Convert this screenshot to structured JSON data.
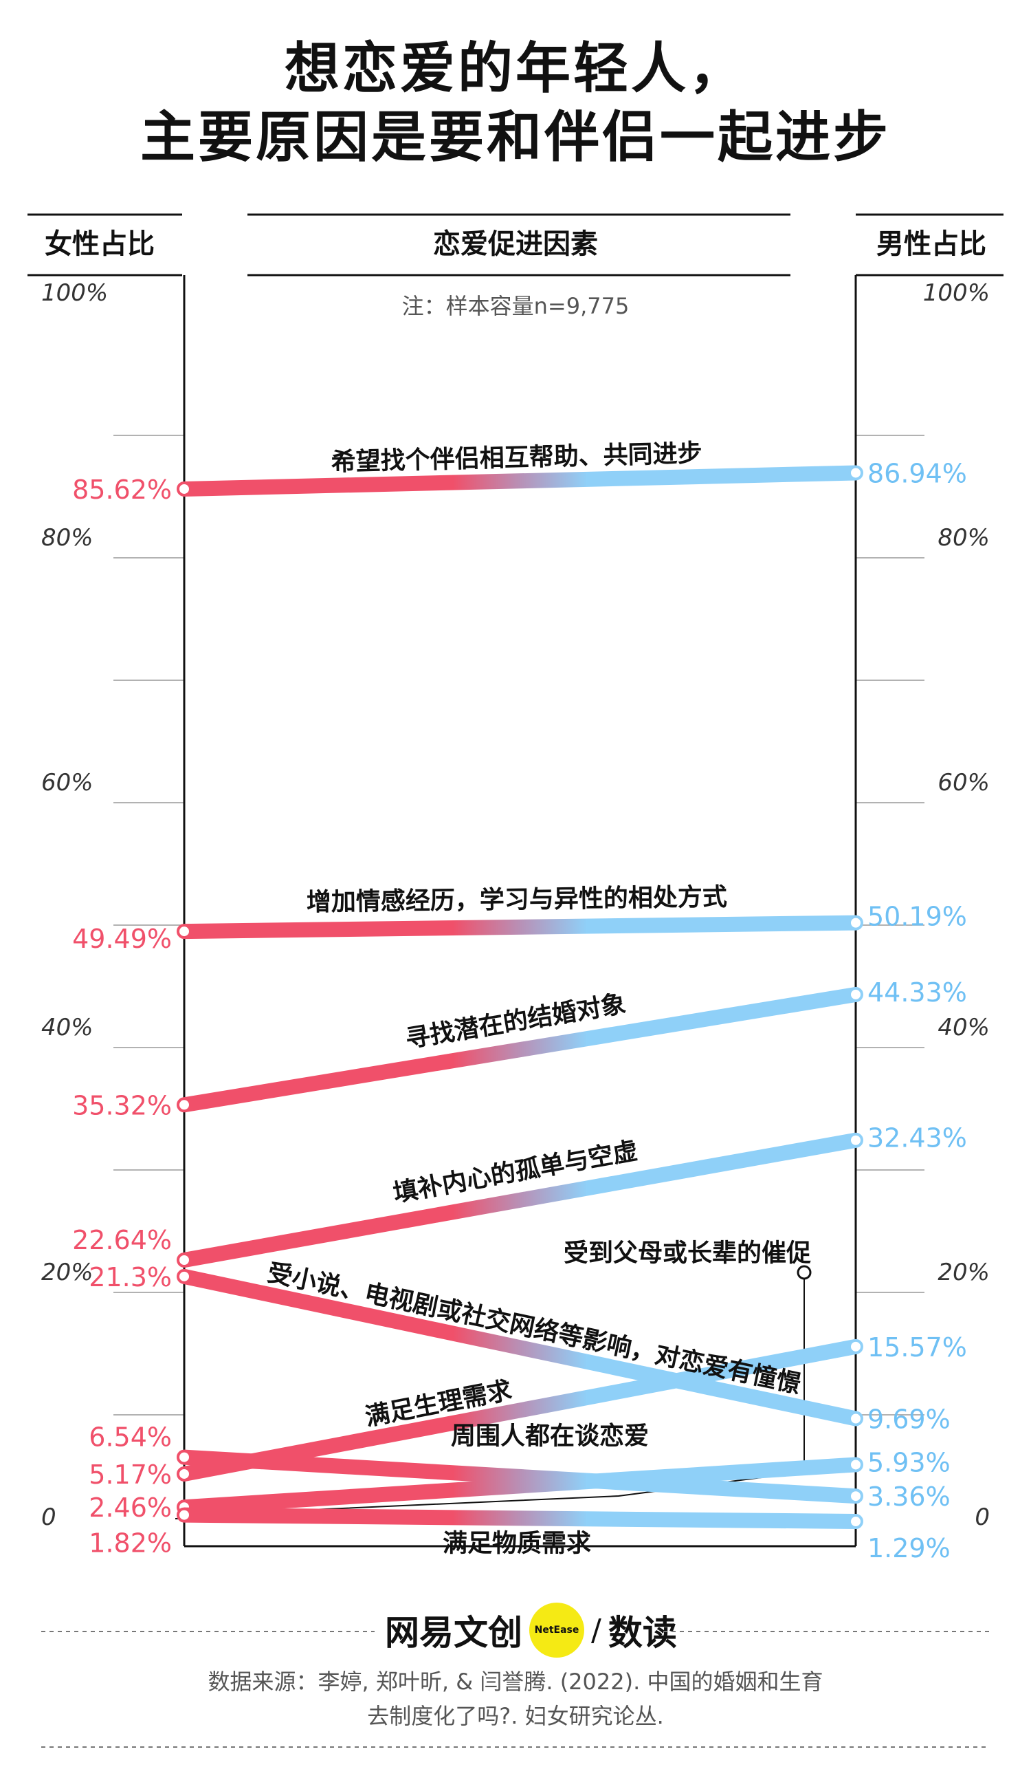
{
  "title_lines": [
    "想恋爱的年轻人，",
    "主要原因是要和伴侣一起进步"
  ],
  "headers": {
    "left": "女性占比",
    "middle": "恋爱促进因素",
    "right": "男性占比"
  },
  "note": "注：样本容量n=9,775",
  "colors": {
    "female": "#f0506a",
    "male": "#8fd0f8",
    "axis": "#111111",
    "grid": "#999999"
  },
  "chart_data": {
    "type": "slope",
    "y_ticks": [
      {
        "value": 100,
        "label": "100%"
      },
      {
        "value": 80,
        "label": "80%"
      },
      {
        "value": 60,
        "label": "60%"
      },
      {
        "value": 40,
        "label": "40%"
      },
      {
        "value": 20,
        "label": "20%"
      },
      {
        "value": 0,
        "label": "0"
      }
    ],
    "ylim": [
      0,
      100
    ],
    "series": [
      {
        "factor": "希望找个伴侣相互帮助、共同进步",
        "female": 85.62,
        "male": 86.94,
        "female_label": "85.62%",
        "male_label": "86.94%"
      },
      {
        "factor": "增加情感经历，学习与异性的相处方式",
        "female": 49.49,
        "male": 50.19,
        "female_label": "49.49%",
        "male_label": "50.19%"
      },
      {
        "factor": "寻找潜在的结婚对象",
        "female": 35.32,
        "male": 44.33,
        "female_label": "35.32%",
        "male_label": "44.33%"
      },
      {
        "factor": "填补内心的孤单与空虚",
        "female": 22.64,
        "male": 32.43,
        "female_label": "22.64%",
        "male_label": "32.43%"
      },
      {
        "factor": "受小说、电视剧或社交网络等影响，对恋爱有憧憬",
        "female": 21.3,
        "male": 9.69,
        "female_label": "21.3%",
        "male_label": "9.69%"
      },
      {
        "factor": "满足生理需求",
        "female": 5.17,
        "male": 15.57,
        "female_label": "5.17%",
        "male_label": "15.57%"
      },
      {
        "factor": "周围人都在谈恋爱",
        "female": 6.54,
        "male": 3.36,
        "female_label": "6.54%",
        "male_label": "3.36%"
      },
      {
        "factor": "受到父母或长辈的催促",
        "female": 2.46,
        "male": 5.93,
        "female_label": "2.46%",
        "male_label": "5.93%"
      },
      {
        "factor": "满足物质需求",
        "female": 1.82,
        "male": 1.29,
        "female_label": "1.82%",
        "male_label": "1.29%"
      }
    ]
  },
  "logo": {
    "text": "网易文创",
    "badge": "NetEase",
    "suffix": "数读"
  },
  "source_lines": [
    "数据来源：李婷, 郑叶昕, & 闫誉腾. (2022). 中国的婚姻和生育",
    "去制度化了吗?. 妇女研究论丛."
  ]
}
